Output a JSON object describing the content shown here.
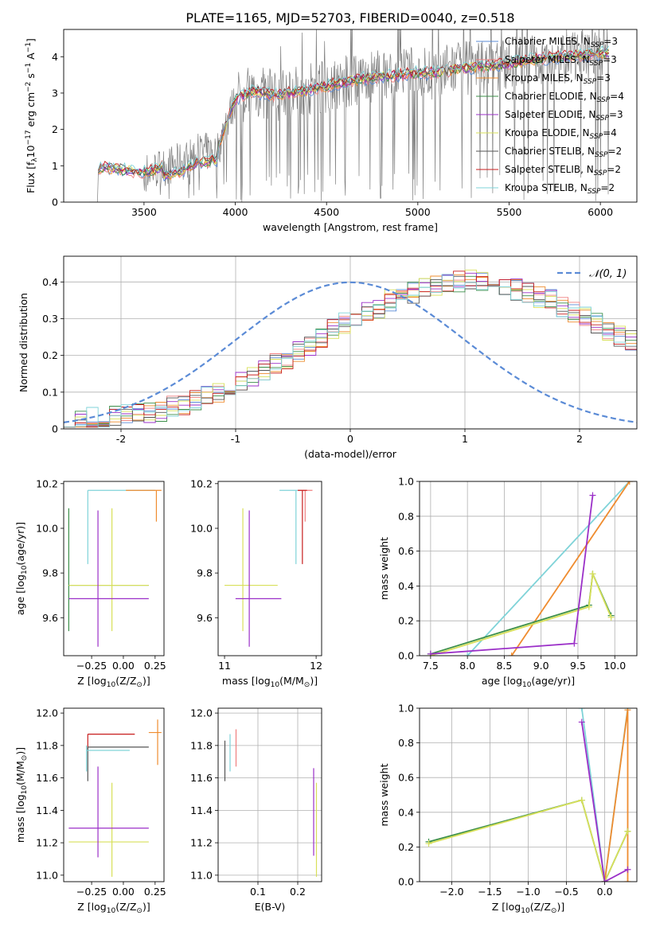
{
  "figure_title": "PLATE=1165, MJD=52703, FIBERID=0040, z=0.518",
  "legend_entries": [
    {
      "name": "Chabrier MILES",
      "n": "3",
      "color": "#5b8bd6"
    },
    {
      "name": "Salpeter MILES",
      "n": "3",
      "color": "#ef7f7f"
    },
    {
      "name": "Kroupa MILES",
      "n": "3",
      "color": "#ef8c2f"
    },
    {
      "name": "Chabrier ELODIE",
      "n": "4",
      "color": "#3c8f4a"
    },
    {
      "name": "Salpeter ELODIE",
      "n": "3",
      "color": "#9b30c8"
    },
    {
      "name": "Kroupa ELODIE",
      "n": "4",
      "color": "#d8e05a"
    },
    {
      "name": "Chabrier STELIB",
      "n": "2",
      "color": "#555555"
    },
    {
      "name": "Salpeter STELIB",
      "n": "2",
      "color": "#c81e1e"
    },
    {
      "name": "Kroupa STELIB",
      "n": "2",
      "color": "#7fd3d8"
    }
  ],
  "chart_data": [
    {
      "id": "spectrum",
      "type": "line",
      "title": "PLATE=1165, MJD=52703, FIBERID=0040, z=0.518",
      "xlabel": "wavelength [Angstrom, rest frame]",
      "ylabel_parts": [
        "Flux [f",
        "λ",
        "10",
        "−17",
        " erg cm",
        "−2",
        " s",
        "−1",
        " A",
        "−1",
        "]"
      ],
      "xlim": [
        3060,
        6200
      ],
      "ylim": [
        0,
        4.75
      ],
      "xticks": [
        3500,
        4000,
        4500,
        5000,
        5500,
        6000
      ],
      "yticks": [
        0,
        1,
        2,
        3,
        4
      ],
      "grid": false,
      "legend_position": "upper-right",
      "observed_color": "#808080",
      "continuum_x": [
        3300,
        3500,
        3700,
        3800,
        3900,
        4000,
        4100,
        4200,
        4300,
        4400,
        4500,
        4600,
        4700,
        4800,
        4900,
        5000,
        5100,
        5200,
        5300,
        5400,
        5500,
        5600,
        5700,
        5800,
        5900,
        6000,
        6050
      ],
      "continuum_y": [
        0.95,
        0.8,
        1.1,
        1.35,
        1.4,
        2.85,
        3.05,
        2.95,
        3.0,
        3.1,
        3.2,
        3.3,
        3.4,
        3.45,
        3.5,
        3.55,
        3.55,
        3.65,
        3.7,
        3.75,
        3.8,
        3.9,
        3.95,
        4.0,
        4.05,
        4.1,
        4.1
      ]
    },
    {
      "id": "residuals",
      "type": "histogram",
      "xlabel": "(data-model)/error",
      "ylabel": "Normed distribution",
      "xlim": [
        -2.5,
        2.5
      ],
      "ylim": [
        0,
        0.47
      ],
      "xticks": [
        -2,
        -1,
        0,
        1,
        2
      ],
      "yticks": [
        0.0,
        0.1,
        0.2,
        0.3,
        0.4
      ],
      "grid": true,
      "legend_position": "upper-right",
      "reference_label": "𝒩(0, 1)",
      "reference_color": "#5b8bd6",
      "bin_width": 0.1,
      "histogram_start": -2.5,
      "base_values": [
        0.02,
        0.025,
        0.03,
        0.03,
        0.035,
        0.04,
        0.04,
        0.045,
        0.05,
        0.06,
        0.065,
        0.075,
        0.09,
        0.1,
        0.11,
        0.13,
        0.14,
        0.16,
        0.18,
        0.19,
        0.21,
        0.23,
        0.25,
        0.27,
        0.29,
        0.3,
        0.32,
        0.33,
        0.35,
        0.36,
        0.37,
        0.38,
        0.39,
        0.4,
        0.4,
        0.41,
        0.4,
        0.4,
        0.39,
        0.38,
        0.37,
        0.36,
        0.35,
        0.33,
        0.32,
        0.31,
        0.29,
        0.27,
        0.25,
        0.24,
        0.23,
        0.22,
        0.2,
        0.18,
        0.17,
        0.16,
        0.15,
        0.13,
        0.12,
        0.11,
        0.1,
        0.09,
        0.08,
        0.07,
        0.065,
        0.06,
        0.055,
        0.05,
        0.045,
        0.04,
        0.035,
        0.035,
        0.03,
        0.03,
        0.028
      ]
    },
    {
      "id": "age-vs-Z",
      "type": "errorbar",
      "xlabel_parts": [
        "Z [log",
        "10",
        "(Z/Z",
        "⊙",
        ")]"
      ],
      "ylabel_parts": [
        "age  [log",
        "10",
        "(age/yr)]"
      ],
      "xlim": [
        -0.47,
        0.32
      ],
      "ylim": [
        9.43,
        10.21
      ],
      "xticks": [
        -0.25,
        0.0,
        0.25
      ],
      "xticklabels": [
        "−0.25",
        "0.00",
        "0.25"
      ],
      "yticks": [
        9.6,
        9.8,
        10.0,
        10.2
      ],
      "yticklabels": [
        "9.6",
        "9.8",
        "10.0",
        "10.2"
      ],
      "grid": false,
      "points": [
        {
          "x": -0.28,
          "y": 10.17,
          "x_from": -0.28,
          "x_to": 0.25,
          "y_from": 9.84,
          "y_to": 10.17,
          "color": "#7fd3d8"
        },
        {
          "x": 0.26,
          "y": 10.17,
          "x_from": 0.02,
          "x_to": 0.3,
          "y_from": 10.03,
          "y_to": 10.17,
          "color": "#ef8c2f"
        },
        {
          "x": -0.43,
          "y": 9.745,
          "x_from": -0.43,
          "x_to": 0.2,
          "y_from": 9.54,
          "y_to": 10.09,
          "color": "#3c8f4a"
        },
        {
          "x": -0.09,
          "y": 9.745,
          "x_from": -0.43,
          "x_to": 0.2,
          "y_from": 9.54,
          "y_to": 10.09,
          "color": "#d8e05a"
        },
        {
          "x": -0.2,
          "y": 9.685,
          "x_from": -0.43,
          "x_to": 0.2,
          "y_from": 9.47,
          "y_to": 10.08,
          "color": "#9b30c8"
        }
      ]
    },
    {
      "id": "age-vs-mass",
      "type": "errorbar",
      "xlabel_parts": [
        "mass [log",
        "10",
        "(M/M",
        "⊙",
        ")]"
      ],
      "xlim": [
        10.93,
        12.06
      ],
      "ylim": [
        9.43,
        10.21
      ],
      "xticks": [
        11,
        12
      ],
      "xticklabels": [
        "11",
        "12"
      ],
      "yticks": [
        9.6,
        9.8,
        10.0,
        10.2
      ],
      "yticklabels": [
        "9.6",
        "9.8",
        "10.0",
        "10.2"
      ],
      "grid": false,
      "points": [
        {
          "x": 11.78,
          "y": 10.17,
          "x_from": 11.6,
          "x_to": 11.82,
          "y_from": 9.84,
          "y_to": 10.17,
          "color": "#7fd3d8"
        },
        {
          "x": 11.88,
          "y": 10.17,
          "x_from": 11.8,
          "x_to": 11.96,
          "y_from": 10.03,
          "y_to": 10.17,
          "color": "#ef7f7f"
        },
        {
          "x": 11.85,
          "y": 10.17,
          "x_from": 11.8,
          "x_to": 11.9,
          "y_from": 9.84,
          "y_to": 10.17,
          "color": "#c81e1e"
        },
        {
          "x": 11.2,
          "y": 9.745,
          "x_from": 11.0,
          "x_to": 11.58,
          "y_from": 9.54,
          "y_to": 10.09,
          "color": "#d8e05a"
        },
        {
          "x": 11.27,
          "y": 9.685,
          "x_from": 11.12,
          "x_to": 11.62,
          "y_from": 9.47,
          "y_to": 10.08,
          "color": "#9b30c8"
        }
      ]
    },
    {
      "id": "mass-weight-vs-age",
      "type": "line",
      "xlabel_parts": [
        "age  [log",
        "10",
        "(age/yr)]"
      ],
      "ylabel": "mass weight",
      "xlim": [
        7.35,
        10.3
      ],
      "ylim": [
        0,
        1
      ],
      "xticks": [
        7.5,
        8.0,
        8.5,
        9.0,
        9.5,
        10.0
      ],
      "xticklabels": [
        "7.5",
        "8.0",
        "8.5",
        "9.0",
        "9.5",
        "10.0"
      ],
      "yticks": [
        0.0,
        0.2,
        0.4,
        0.6,
        0.8,
        1.0
      ],
      "yticklabels": [
        "0.0",
        "0.2",
        "0.4",
        "0.6",
        "0.8",
        "1.0"
      ],
      "grid": true,
      "series": [
        {
          "color": "#7fd3d8",
          "x": [
            8.0,
            10.2
          ],
          "y": [
            0.0,
            1.0
          ]
        },
        {
          "color": "#ef8c2f",
          "x": [
            8.6,
            10.2
          ],
          "y": [
            0.0,
            1.0
          ]
        },
        {
          "color": "#3c8f4a",
          "x": [
            7.5,
            9.65,
            9.7,
            9.95
          ],
          "y": [
            0.01,
            0.29,
            0.47,
            0.23
          ]
        },
        {
          "color": "#d8e05a",
          "x": [
            7.5,
            9.65,
            9.7,
            9.95
          ],
          "y": [
            0.0,
            0.28,
            0.47,
            0.22
          ]
        },
        {
          "color": "#9b30c8",
          "x": [
            7.5,
            9.45,
            9.7
          ],
          "y": [
            0.01,
            0.07,
            0.92
          ]
        }
      ]
    },
    {
      "id": "mass-vs-Z",
      "type": "errorbar",
      "xlabel_parts": [
        "Z [log",
        "10",
        "(Z/Z",
        "⊙",
        ")]"
      ],
      "ylabel_parts": [
        "mass [log",
        "10",
        "(M/M",
        "⊙",
        ")]"
      ],
      "xlim": [
        -0.47,
        0.32
      ],
      "ylim": [
        10.96,
        12.03
      ],
      "xticks": [
        -0.25,
        0.0,
        0.25
      ],
      "xticklabels": [
        "−0.25",
        "0.00",
        "0.25"
      ],
      "yticks": [
        11.0,
        11.2,
        11.4,
        11.6,
        11.8,
        12.0
      ],
      "yticklabels": [
        "11.0",
        "11.2",
        "11.4",
        "11.6",
        "11.8",
        "12.0"
      ],
      "grid": false,
      "points": [
        {
          "x": -0.28,
          "y": 11.87,
          "x_from": -0.28,
          "x_to": 0.09,
          "y_from": 11.77,
          "y_to": 11.87,
          "color": "#c81e1e"
        },
        {
          "x": -0.28,
          "y": 11.79,
          "x_from": -0.28,
          "x_to": 0.2,
          "y_from": 11.58,
          "y_to": 11.79,
          "color": "#555555"
        },
        {
          "x": -0.29,
          "y": 11.77,
          "x_from": -0.29,
          "x_to": 0.05,
          "y_from": 11.64,
          "y_to": 11.8,
          "color": "#7fd3d8"
        },
        {
          "x": 0.27,
          "y": 11.88,
          "x_from": 0.2,
          "x_to": 0.3,
          "y_from": 11.68,
          "y_to": 11.96,
          "color": "#ef8c2f"
        },
        {
          "x": -0.09,
          "y": 11.205,
          "x_from": -0.43,
          "x_to": 0.2,
          "y_from": 10.99,
          "y_to": 11.57,
          "color": "#d8e05a"
        },
        {
          "x": -0.2,
          "y": 11.29,
          "x_from": -0.43,
          "x_to": 0.2,
          "y_from": 11.11,
          "y_to": 11.67,
          "color": "#9b30c8"
        }
      ]
    },
    {
      "id": "mass-vs-EBV",
      "type": "errorbar",
      "xlabel": "E(B-V)",
      "xlim": [
        0.0,
        0.26
      ],
      "ylim": [
        10.96,
        12.03
      ],
      "xticks": [
        0.1,
        0.2
      ],
      "xticklabels": [
        "0.1",
        "0.2"
      ],
      "yticks": [
        11.0,
        11.2,
        11.4,
        11.6,
        11.8,
        12.0
      ],
      "yticklabels": [
        "11.0",
        "11.2",
        "11.4",
        "11.6",
        "11.8",
        "12.0"
      ],
      "grid": true,
      "points": [
        {
          "x": 0.017,
          "y": 11.7,
          "y_from": 11.58,
          "y_to": 11.83,
          "color": "#555555"
        },
        {
          "x": 0.03,
          "y": 11.78,
          "y_from": 11.64,
          "y_to": 11.87,
          "color": "#7fd3d8"
        },
        {
          "x": 0.045,
          "y": 11.79,
          "y_from": 11.67,
          "y_to": 11.9,
          "color": "#ef7f7f"
        },
        {
          "x": 0.24,
          "y": 11.4,
          "y_from": 11.12,
          "y_to": 11.66,
          "color": "#9b30c8"
        },
        {
          "x": 0.247,
          "y": 11.28,
          "y_from": 10.99,
          "y_to": 11.57,
          "color": "#d8e05a"
        }
      ]
    },
    {
      "id": "mass-weight-vs-Z",
      "type": "line",
      "xlabel_parts": [
        "Z [log",
        "10",
        "(Z/Z",
        "⊙",
        ")]"
      ],
      "ylabel": "mass weight",
      "xlim": [
        -2.42,
        0.42
      ],
      "ylim": [
        0,
        1
      ],
      "xticks": [
        -2.0,
        -1.5,
        -1.0,
        -0.5,
        0.0
      ],
      "xticklabels": [
        "−2.0",
        "−1.5",
        "−1.0",
        "−0.5",
        "0.0"
      ],
      "yticks": [
        0.0,
        0.2,
        0.4,
        0.6,
        0.8,
        1.0
      ],
      "yticklabels": [
        "0.0",
        "0.2",
        "0.4",
        "0.6",
        "0.8",
        "1.0"
      ],
      "grid": true,
      "series": [
        {
          "color": "#7fd3d8",
          "x": [
            -0.3,
            0.0,
            0.3
          ],
          "y": [
            1.0,
            0.0,
            1.0
          ]
        },
        {
          "color": "#ef8c2f",
          "x": [
            0.0,
            0.3,
            0.3
          ],
          "y": [
            0.0,
            0.99,
            0.0
          ]
        },
        {
          "color": "#3c8f4a",
          "x": [
            -2.3,
            -0.3,
            0.0,
            0.3
          ],
          "y": [
            0.23,
            0.47,
            0.0,
            0.29
          ]
        },
        {
          "color": "#d8e05a",
          "x": [
            -2.3,
            -0.3,
            0.0,
            0.3
          ],
          "y": [
            0.22,
            0.47,
            0.0,
            0.29
          ]
        },
        {
          "color": "#9b30c8",
          "x": [
            -0.3,
            0.0,
            0.3
          ],
          "y": [
            0.92,
            0.0,
            0.07
          ]
        }
      ]
    }
  ]
}
